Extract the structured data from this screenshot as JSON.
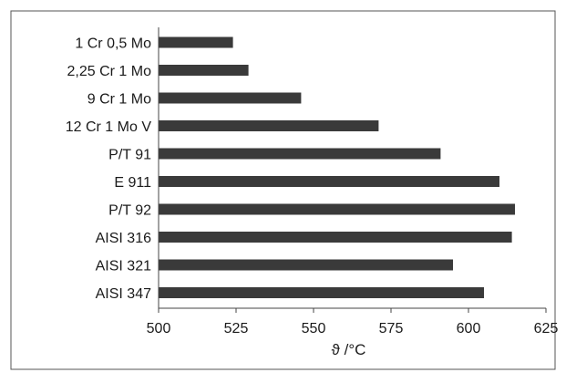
{
  "chart_data": {
    "type": "bar",
    "orientation": "horizontal",
    "categories": [
      "1 Cr 0,5 Mo",
      "2,25 Cr 1 Mo",
      "9 Cr 1 Mo",
      "12 Cr 1 Mo V",
      "P/T 91",
      "E 911",
      "P/T 92",
      "AISI 316",
      "AISI 321",
      "AISI 347"
    ],
    "values": [
      524,
      529,
      546,
      571,
      591,
      610,
      615,
      614,
      595,
      605
    ],
    "xlabel": "ϑ /°C",
    "ylabel": "",
    "title": "",
    "xlim": [
      500,
      625
    ],
    "xticks": [
      "500",
      "525",
      "550",
      "575",
      "600",
      "625"
    ],
    "grid": false,
    "legend": "none",
    "bar_color": "#3a3a3a"
  }
}
